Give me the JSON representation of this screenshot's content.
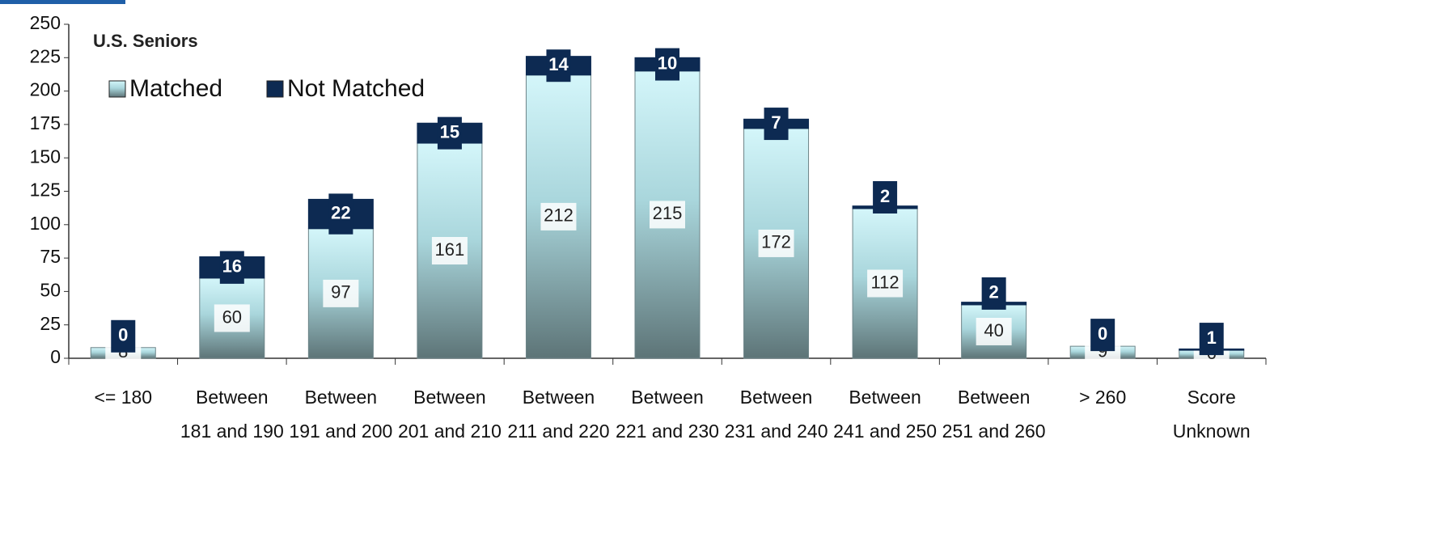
{
  "chart_data": {
    "type": "stacked_bar",
    "title": "U.S. Seniors",
    "categories": [
      "<= 180",
      "Between 181 and 190",
      "Between 191 and 200",
      "Between 201 and 210",
      "Between 211 and 220",
      "Between 221 and 230",
      "Between 231 and 240",
      "Between 241 and 250",
      "Between 251 and 260",
      "> 260",
      "Score Unknown"
    ],
    "series": [
      {
        "name": "Matched",
        "color": "#d4f6fa",
        "values": [
          8,
          60,
          97,
          161,
          212,
          215,
          172,
          112,
          40,
          9,
          6
        ]
      },
      {
        "name": "Not Matched",
        "color": "#0d2a52",
        "values": [
          0,
          16,
          22,
          15,
          14,
          10,
          7,
          2,
          2,
          0,
          1
        ]
      }
    ],
    "ylim": [
      0,
      250
    ],
    "yticks": [
      0,
      25,
      50,
      75,
      100,
      125,
      150,
      175,
      200,
      225,
      250
    ],
    "legend": "top-left"
  }
}
